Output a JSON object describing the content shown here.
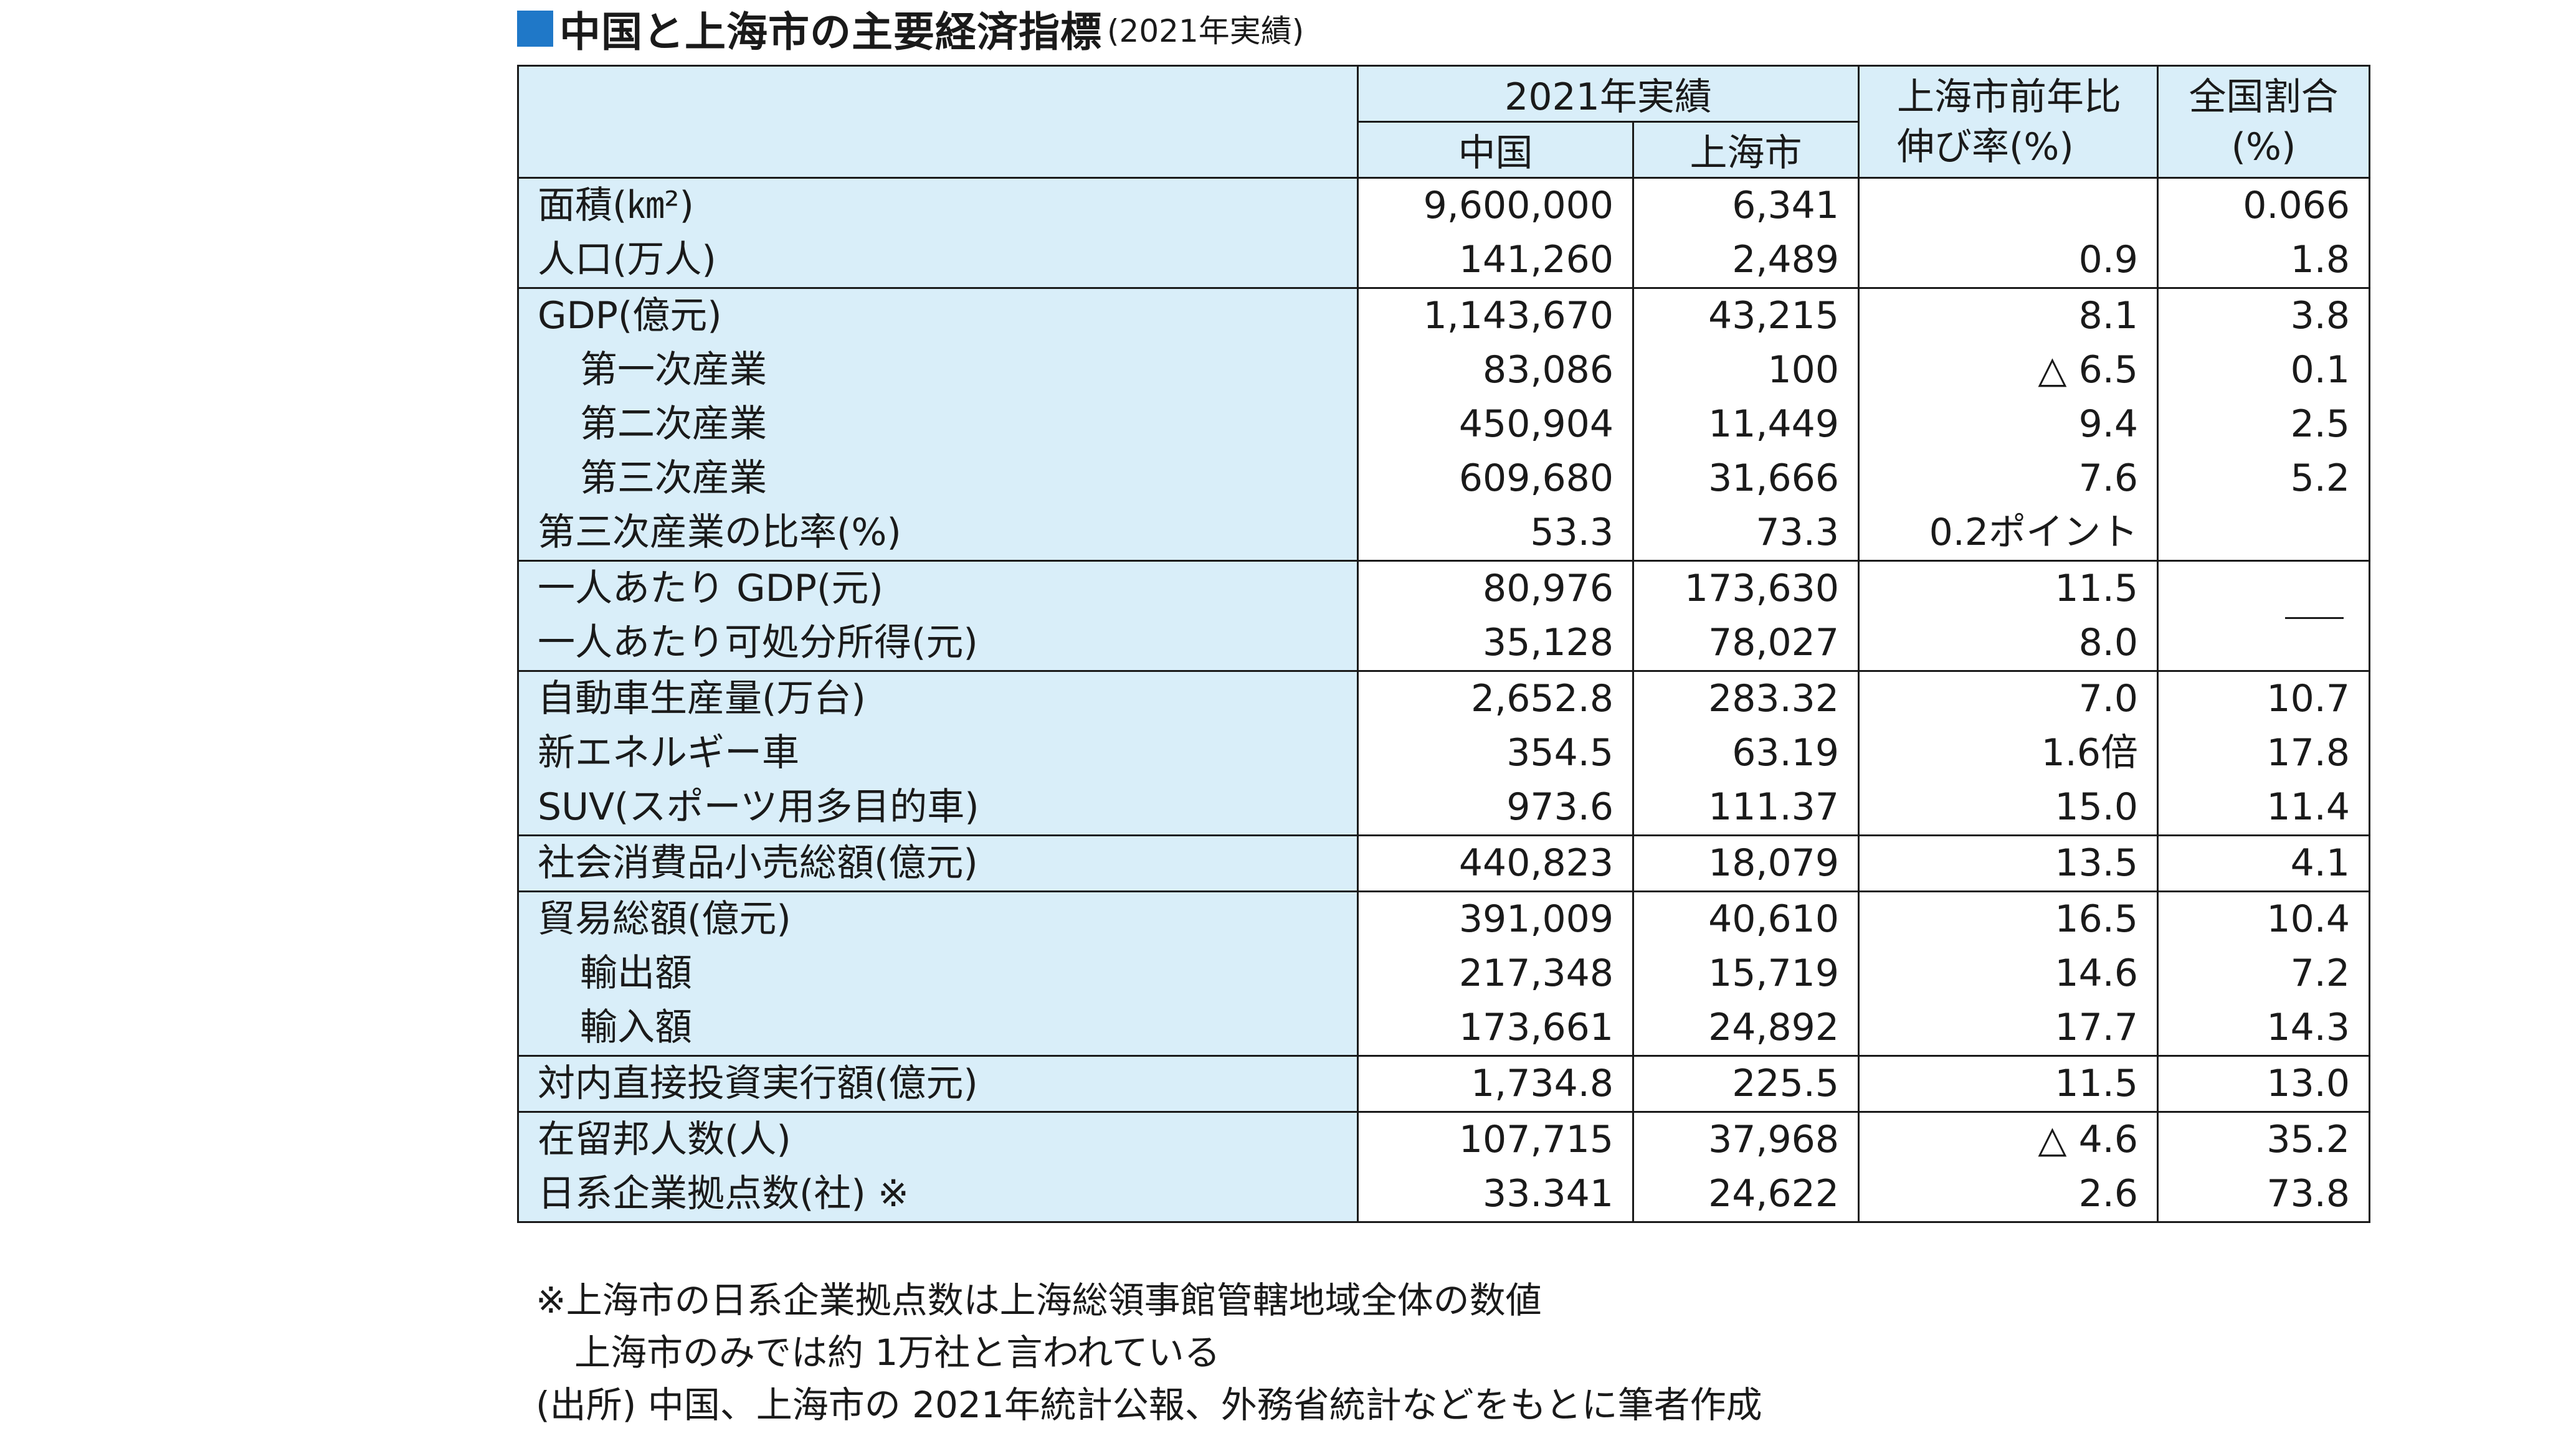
{
  "title": {
    "main": "中国と上海市の主要経済指標",
    "sub": "(2021年実績)"
  },
  "header": {
    "group": "2021年実績",
    "col_china": "中国",
    "col_shanghai": "上海市",
    "col_growth_line1": "上海市前年比",
    "col_growth_line2": "伸び率(%)",
    "col_share_line1": "全国割合",
    "col_share_line2": "(%)"
  },
  "groups": [
    {
      "rows": [
        {
          "label": "面積(㎞²)",
          "china": "9,600,000",
          "shanghai": "6,341",
          "growth": "",
          "share": "0.066"
        },
        {
          "label": "人口(万人)",
          "china": "141,260",
          "shanghai": "2,489",
          "growth": "0.9",
          "share": "1.8"
        }
      ]
    },
    {
      "rows": [
        {
          "label": "GDP(億元)",
          "china": "1,143,670",
          "shanghai": "43,215",
          "growth": "8.1",
          "share": "3.8"
        },
        {
          "label": "第一次産業",
          "china": "83,086",
          "shanghai": "100",
          "growth": "△ 6.5",
          "share": "0.1"
        },
        {
          "label": "第二次産業",
          "china": "450,904",
          "shanghai": "11,449",
          "growth": "9.4",
          "share": "2.5"
        },
        {
          "label": "第三次産業",
          "china": "609,680",
          "shanghai": "31,666",
          "growth": "7.6",
          "share": "5.2"
        },
        {
          "label": "第三次産業の比率(%)",
          "china": "53.3",
          "shanghai": "73.3",
          "growth": "0.2ポイント",
          "share": ""
        }
      ]
    },
    {
      "rows": [
        {
          "label": "一人あたり GDP(元)",
          "china": "80,976",
          "shanghai": "173,630",
          "growth": "11.5",
          "share": "—"
        },
        {
          "label": "一人あたり可処分所得(元)",
          "china": "35,128",
          "shanghai": "78,027",
          "growth": "8.0",
          "share": ""
        }
      ]
    },
    {
      "rows": [
        {
          "label": "自動車生産量(万台)",
          "china": "2,652.8",
          "shanghai": "283.32",
          "growth": "7.0",
          "share": "10.7"
        },
        {
          "label": "新エネルギー車",
          "china": "354.5",
          "shanghai": "63.19",
          "growth": "1.6倍",
          "share": "17.8"
        },
        {
          "label": "SUV(スポーツ用多目的車)",
          "china": "973.6",
          "shanghai": "111.37",
          "growth": "15.0",
          "share": "11.4"
        }
      ]
    },
    {
      "rows": [
        {
          "label": "社会消費品小売総額(億元)",
          "china": "440,823",
          "shanghai": "18,079",
          "growth": "13.5",
          "share": "4.1"
        }
      ]
    },
    {
      "rows": [
        {
          "label": "貿易総額(億元)",
          "china": "391,009",
          "shanghai": "40,610",
          "growth": "16.5",
          "share": "10.4"
        },
        {
          "label": "輸出額",
          "china": "217,348",
          "shanghai": "15,719",
          "growth": "14.6",
          "share": "7.2"
        },
        {
          "label": "輸入額",
          "china": "173,661",
          "shanghai": "24,892",
          "growth": "17.7",
          "share": "14.3"
        }
      ]
    },
    {
      "rows": [
        {
          "label": "対内直接投資実行額(億元)",
          "china": "1,734.8",
          "shanghai": "225.5",
          "growth": "11.5",
          "share": "13.0"
        }
      ]
    },
    {
      "rows": [
        {
          "label": "在留邦人数(人)",
          "china": "107,715",
          "shanghai": "37,968",
          "growth": "△ 4.6",
          "share": "35.2"
        },
        {
          "label": "日系企業拠点数(社) ※",
          "china": "33.341",
          "shanghai": "24,622",
          "growth": "2.6",
          "share": "73.8"
        }
      ]
    }
  ],
  "footnotes": {
    "note1": "※上海市の日系企業拠点数は上海総領事館管轄地域全体の数値",
    "note2": "上海市のみでは約 1万社と言われている",
    "source": "(出所) 中国、上海市の 2021年統計公報、外務省統計などをもとに筆者作成"
  },
  "colors": {
    "title_square": "#1f78c8",
    "label_background": "#d9eef9",
    "rule": "#1a1a1a"
  }
}
